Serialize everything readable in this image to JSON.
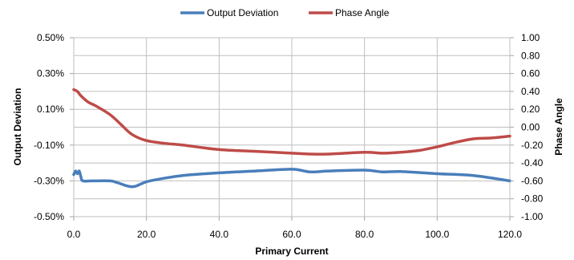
{
  "chart_data": {
    "type": "line",
    "title": "",
    "xlabel": "Primary Current",
    "ylabel": "Output Deviation",
    "y2label": "Phase Angle",
    "xlim": [
      0,
      120
    ],
    "ylim": [
      -0.5,
      0.5
    ],
    "y2lim": [
      -1.0,
      1.0
    ],
    "x_ticks": [
      "0.0",
      "20.0",
      "40.0",
      "60.0",
      "80.0",
      "100.0",
      "120.0"
    ],
    "y_ticks": [
      "0.50%",
      "0.30%",
      "0.10%",
      "-0.10%",
      "-0.30%",
      "-0.50%"
    ],
    "y2_ticks": [
      "1.00",
      "0.80",
      "0.60",
      "0.40",
      "0.20",
      "0.00",
      "-0.20",
      "-0.40",
      "-0.60",
      "-0.80",
      "-1.00"
    ],
    "grid": true,
    "legend_position": "top",
    "series": [
      {
        "name": "Output Deviation",
        "axis": "left",
        "color": "#4a7ebb",
        "points": [
          [
            0.0,
            -0.265
          ],
          [
            0.5,
            -0.245
          ],
          [
            1.0,
            -0.26
          ],
          [
            1.5,
            -0.245
          ],
          [
            2.0,
            -0.28
          ],
          [
            2.5,
            -0.3
          ],
          [
            5.0,
            -0.3
          ],
          [
            10.0,
            -0.3
          ],
          [
            12.0,
            -0.31
          ],
          [
            15.0,
            -0.33
          ],
          [
            17.0,
            -0.33
          ],
          [
            20.0,
            -0.305
          ],
          [
            25.0,
            -0.285
          ],
          [
            30.0,
            -0.27
          ],
          [
            40.0,
            -0.255
          ],
          [
            50.0,
            -0.245
          ],
          [
            60.0,
            -0.235
          ],
          [
            65.0,
            -0.25
          ],
          [
            70.0,
            -0.245
          ],
          [
            80.0,
            -0.24
          ],
          [
            85.0,
            -0.25
          ],
          [
            90.0,
            -0.248
          ],
          [
            100.0,
            -0.26
          ],
          [
            110.0,
            -0.27
          ],
          [
            120.0,
            -0.3
          ]
        ]
      },
      {
        "name": "Phase Angle",
        "axis": "right",
        "color": "#be4b48",
        "points": [
          [
            0.0,
            0.42
          ],
          [
            1.0,
            0.4
          ],
          [
            2.0,
            0.35
          ],
          [
            4.0,
            0.28
          ],
          [
            6.0,
            0.24
          ],
          [
            10.0,
            0.14
          ],
          [
            13.0,
            0.03
          ],
          [
            16.0,
            -0.08
          ],
          [
            20.0,
            -0.15
          ],
          [
            25.0,
            -0.18
          ],
          [
            30.0,
            -0.2
          ],
          [
            40.0,
            -0.25
          ],
          [
            50.0,
            -0.27
          ],
          [
            60.0,
            -0.29
          ],
          [
            65.0,
            -0.3
          ],
          [
            70.0,
            -0.3
          ],
          [
            80.0,
            -0.28
          ],
          [
            85.0,
            -0.29
          ],
          [
            90.0,
            -0.28
          ],
          [
            95.0,
            -0.26
          ],
          [
            100.0,
            -0.22
          ],
          [
            105.0,
            -0.17
          ],
          [
            110.0,
            -0.13
          ],
          [
            115.0,
            -0.12
          ],
          [
            120.0,
            -0.1
          ]
        ]
      }
    ]
  }
}
